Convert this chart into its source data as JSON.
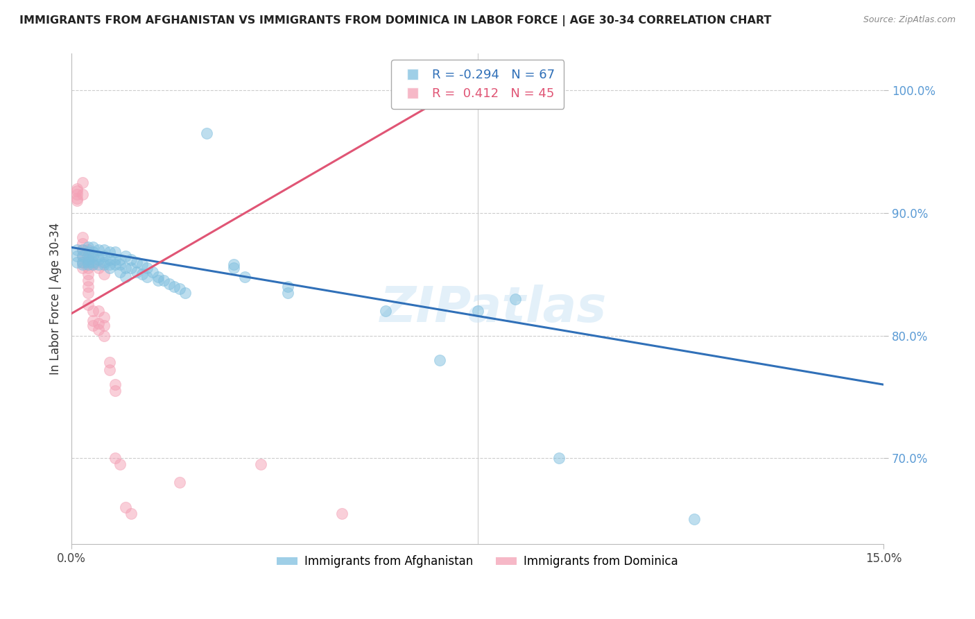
{
  "title": "IMMIGRANTS FROM AFGHANISTAN VS IMMIGRANTS FROM DOMINICA IN LABOR FORCE | AGE 30-34 CORRELATION CHART",
  "source": "Source: ZipAtlas.com",
  "ylabel": "In Labor Force | Age 30-34",
  "legend_blue_r": "R = -0.294",
  "legend_blue_n": "N = 67",
  "legend_pink_r": "R =  0.412",
  "legend_pink_n": "N = 45",
  "legend_label_blue": "Immigrants from Afghanistan",
  "legend_label_pink": "Immigrants from Dominica",
  "watermark": "ZIPatlas",
  "blue_color": "#7fbfdf",
  "pink_color": "#f4a0b5",
  "blue_line_color": "#3070b8",
  "pink_line_color": "#e05575",
  "blue_scatter": [
    [
      0.001,
      0.87
    ],
    [
      0.001,
      0.865
    ],
    [
      0.001,
      0.86
    ],
    [
      0.002,
      0.87
    ],
    [
      0.002,
      0.865
    ],
    [
      0.002,
      0.86
    ],
    [
      0.002,
      0.858
    ],
    [
      0.003,
      0.872
    ],
    [
      0.003,
      0.868
    ],
    [
      0.003,
      0.865
    ],
    [
      0.003,
      0.862
    ],
    [
      0.003,
      0.86
    ],
    [
      0.003,
      0.858
    ],
    [
      0.004,
      0.872
    ],
    [
      0.004,
      0.868
    ],
    [
      0.004,
      0.865
    ],
    [
      0.004,
      0.86
    ],
    [
      0.004,
      0.858
    ],
    [
      0.005,
      0.87
    ],
    [
      0.005,
      0.865
    ],
    [
      0.005,
      0.862
    ],
    [
      0.005,
      0.858
    ],
    [
      0.006,
      0.87
    ],
    [
      0.006,
      0.865
    ],
    [
      0.006,
      0.86
    ],
    [
      0.006,
      0.858
    ],
    [
      0.007,
      0.868
    ],
    [
      0.007,
      0.862
    ],
    [
      0.007,
      0.858
    ],
    [
      0.007,
      0.855
    ],
    [
      0.008,
      0.868
    ],
    [
      0.008,
      0.862
    ],
    [
      0.008,
      0.858
    ],
    [
      0.009,
      0.862
    ],
    [
      0.009,
      0.858
    ],
    [
      0.009,
      0.852
    ],
    [
      0.01,
      0.865
    ],
    [
      0.01,
      0.855
    ],
    [
      0.01,
      0.848
    ],
    [
      0.011,
      0.862
    ],
    [
      0.011,
      0.855
    ],
    [
      0.012,
      0.86
    ],
    [
      0.012,
      0.852
    ],
    [
      0.013,
      0.858
    ],
    [
      0.013,
      0.85
    ],
    [
      0.014,
      0.855
    ],
    [
      0.014,
      0.848
    ],
    [
      0.015,
      0.852
    ],
    [
      0.016,
      0.848
    ],
    [
      0.016,
      0.845
    ],
    [
      0.017,
      0.845
    ],
    [
      0.018,
      0.842
    ],
    [
      0.019,
      0.84
    ],
    [
      0.02,
      0.838
    ],
    [
      0.021,
      0.835
    ],
    [
      0.025,
      0.965
    ],
    [
      0.03,
      0.858
    ],
    [
      0.03,
      0.855
    ],
    [
      0.032,
      0.848
    ],
    [
      0.04,
      0.84
    ],
    [
      0.04,
      0.835
    ],
    [
      0.058,
      0.82
    ],
    [
      0.068,
      0.78
    ],
    [
      0.075,
      0.82
    ],
    [
      0.082,
      0.83
    ],
    [
      0.09,
      0.7
    ],
    [
      0.115,
      0.65
    ]
  ],
  "pink_scatter": [
    [
      0.001,
      0.92
    ],
    [
      0.001,
      0.918
    ],
    [
      0.001,
      0.915
    ],
    [
      0.001,
      0.912
    ],
    [
      0.001,
      0.91
    ],
    [
      0.002,
      0.925
    ],
    [
      0.002,
      0.915
    ],
    [
      0.002,
      0.88
    ],
    [
      0.002,
      0.875
    ],
    [
      0.002,
      0.87
    ],
    [
      0.002,
      0.865
    ],
    [
      0.002,
      0.86
    ],
    [
      0.002,
      0.855
    ],
    [
      0.003,
      0.87
    ],
    [
      0.003,
      0.862
    ],
    [
      0.003,
      0.855
    ],
    [
      0.003,
      0.85
    ],
    [
      0.003,
      0.845
    ],
    [
      0.003,
      0.84
    ],
    [
      0.003,
      0.835
    ],
    [
      0.003,
      0.825
    ],
    [
      0.004,
      0.865
    ],
    [
      0.004,
      0.858
    ],
    [
      0.004,
      0.82
    ],
    [
      0.004,
      0.812
    ],
    [
      0.004,
      0.808
    ],
    [
      0.005,
      0.855
    ],
    [
      0.005,
      0.82
    ],
    [
      0.005,
      0.81
    ],
    [
      0.005,
      0.805
    ],
    [
      0.006,
      0.85
    ],
    [
      0.006,
      0.815
    ],
    [
      0.006,
      0.808
    ],
    [
      0.006,
      0.8
    ],
    [
      0.007,
      0.778
    ],
    [
      0.007,
      0.772
    ],
    [
      0.008,
      0.76
    ],
    [
      0.008,
      0.755
    ],
    [
      0.008,
      0.7
    ],
    [
      0.009,
      0.695
    ],
    [
      0.01,
      0.66
    ],
    [
      0.011,
      0.655
    ],
    [
      0.02,
      0.68
    ],
    [
      0.035,
      0.695
    ],
    [
      0.05,
      0.655
    ]
  ],
  "xlim": [
    0.0,
    0.15
  ],
  "ylim": [
    0.63,
    1.03
  ],
  "xtick_positions": [
    0.0,
    0.15
  ],
  "xtick_labels": [
    "0.0%",
    "15.0%"
  ],
  "ytick_positions": [
    0.7,
    0.8,
    0.9,
    1.0
  ],
  "ytick_labels": [
    "70.0%",
    "80.0%",
    "90.0%",
    "100.0%"
  ],
  "blue_line_x": [
    0.0,
    0.15
  ],
  "blue_line_y": [
    0.872,
    0.76
  ],
  "pink_line_x": [
    0.0,
    0.075
  ],
  "pink_line_y": [
    0.818,
    1.01
  ]
}
